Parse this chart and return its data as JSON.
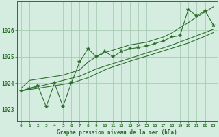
{
  "title": "Graphe pression niveau de la mer (hPa)",
  "background_color": "#d5ede0",
  "grid_color": "#a8ccb4",
  "line_color": "#2d6e2d",
  "xlim": [
    -0.5,
    23.5
  ],
  "ylim": [
    1022.55,
    1027.1
  ],
  "yticks": [
    1023,
    1024,
    1025,
    1026
  ],
  "xticks": [
    0,
    1,
    2,
    3,
    4,
    5,
    6,
    7,
    8,
    9,
    10,
    11,
    12,
    13,
    14,
    15,
    16,
    17,
    18,
    19,
    20,
    21,
    22,
    23
  ],
  "hours": [
    0,
    1,
    2,
    3,
    4,
    5,
    6,
    7,
    8,
    9,
    10,
    11,
    12,
    13,
    14,
    15,
    16,
    17,
    18,
    19,
    20,
    21,
    22,
    23
  ],
  "pressure_main": [
    1023.7,
    1023.8,
    1023.9,
    1023.1,
    1024.0,
    1023.1,
    1024.0,
    1024.8,
    1025.3,
    1025.0,
    1025.2,
    1025.0,
    1025.2,
    1025.3,
    1025.35,
    1025.4,
    1025.5,
    1025.6,
    1025.75,
    1025.8,
    1026.8,
    1026.55,
    1026.75,
    1026.2
  ],
  "pressure_high": [
    1023.8,
    1024.1,
    1024.15,
    1024.2,
    1024.25,
    1024.3,
    1024.4,
    1024.5,
    1024.8,
    1025.0,
    1025.15,
    1025.25,
    1025.35,
    1025.45,
    1025.5,
    1025.55,
    1025.65,
    1025.75,
    1025.9,
    1026.1,
    1026.3,
    1026.5,
    1026.7,
    1026.9
  ],
  "pressure_low": [
    1023.7,
    1023.75,
    1023.8,
    1023.85,
    1023.9,
    1023.95,
    1024.0,
    1024.1,
    1024.2,
    1024.35,
    1024.5,
    1024.62,
    1024.72,
    1024.83,
    1024.93,
    1025.02,
    1025.12,
    1025.22,
    1025.32,
    1025.42,
    1025.52,
    1025.65,
    1025.78,
    1025.92
  ],
  "pressure_trend": [
    1023.7,
    1023.78,
    1023.86,
    1023.94,
    1024.02,
    1024.1,
    1024.18,
    1024.26,
    1024.4,
    1024.54,
    1024.64,
    1024.74,
    1024.84,
    1024.94,
    1025.04,
    1025.14,
    1025.24,
    1025.34,
    1025.44,
    1025.56,
    1025.68,
    1025.8,
    1025.92,
    1026.04
  ]
}
